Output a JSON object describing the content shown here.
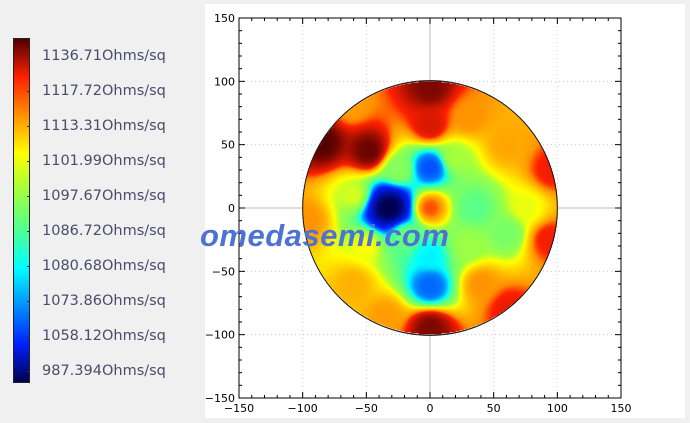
{
  "chart_data": {
    "type": "heatmap",
    "title": "",
    "xlabel": "",
    "ylabel": "",
    "xlim": [
      -150,
      150
    ],
    "ylim": [
      -150,
      150
    ],
    "xticks": [
      "−150",
      "−100",
      "−50",
      "0",
      "50",
      "100",
      "150"
    ],
    "yticks": [
      "150",
      "100",
      "50",
      "0",
      "−50",
      "−100",
      "−150"
    ],
    "grid": true,
    "wafer_radius": 100,
    "colorbar": {
      "position": "left",
      "labels": [
        "1136.71Ohms/sq",
        "1117.72Ohms/sq",
        "1113.31Ohms/sq",
        "1101.99Ohms/sq",
        "1097.67Ohms/sq",
        "1086.72Ohms/sq",
        "1080.68Ohms/sq",
        "1073.86Ohms/sq",
        "1058.12Ohms/sq",
        "987.394Ohms/sq"
      ],
      "values": [
        1136.71,
        1117.72,
        1113.31,
        1101.99,
        1097.67,
        1086.72,
        1080.68,
        1073.86,
        1058.12,
        987.394
      ],
      "colors": [
        "#500000",
        "#ff2000",
        "#ff9000",
        "#ffff00",
        "#a0ff40",
        "#50ff90",
        "#00ffff",
        "#0090ff",
        "#0020ff",
        "#000050"
      ]
    },
    "points": [
      {
        "x": -32,
        "y": 0,
        "value": 987
      },
      {
        "x": 0,
        "y": 32,
        "value": 1065
      },
      {
        "x": 0,
        "y": -62,
        "value": 1068
      },
      {
        "x": 0,
        "y": -38,
        "value": 1080
      },
      {
        "x": 0,
        "y": 0,
        "value": 1116
      },
      {
        "x": 35,
        "y": 0,
        "value": 1088
      },
      {
        "x": -48,
        "y": 45,
        "value": 1134
      },
      {
        "x": -84,
        "y": 52,
        "value": 1136
      },
      {
        "x": 0,
        "y": 95,
        "value": 1132
      },
      {
        "x": 0,
        "y": -95,
        "value": 1132
      },
      {
        "x": 0,
        "y": 65,
        "value": 1122
      },
      {
        "x": 95,
        "y": 30,
        "value": 1119
      },
      {
        "x": 93,
        "y": -25,
        "value": 1119
      },
      {
        "x": 62,
        "y": -80,
        "value": 1120
      },
      {
        "x": -96,
        "y": -10,
        "value": 1113
      },
      {
        "x": -60,
        "y": -60,
        "value": 1110
      },
      {
        "x": 60,
        "y": 50,
        "value": 1111
      },
      {
        "x": 30,
        "y": 72,
        "value": 1113
      },
      {
        "x": -25,
        "y": 30,
        "value": 1094
      },
      {
        "x": -20,
        "y": -22,
        "value": 1090
      },
      {
        "x": 30,
        "y": -30,
        "value": 1097
      },
      {
        "x": 60,
        "y": -20,
        "value": 1092
      },
      {
        "x": 20,
        "y": 40,
        "value": 1098
      },
      {
        "x": -60,
        "y": 10,
        "value": 1100
      },
      {
        "x": 75,
        "y": 0,
        "value": 1101
      },
      {
        "x": -50,
        "y": -30,
        "value": 1102
      },
      {
        "x": 40,
        "y": -60,
        "value": 1113
      },
      {
        "x": -62,
        "y": 80,
        "value": 1112
      },
      {
        "x": -35,
        "y": -85,
        "value": 1112
      }
    ]
  },
  "watermark": "omedasemi.com"
}
